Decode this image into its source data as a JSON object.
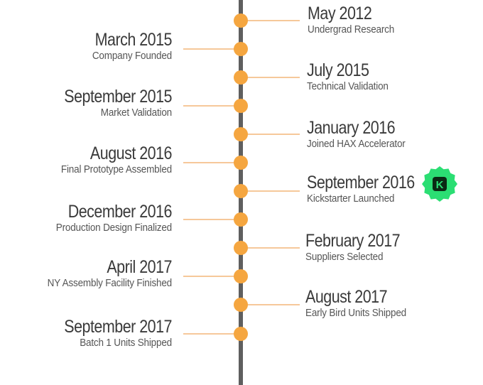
{
  "timeline": {
    "left_events": [
      {
        "date": "March 2015",
        "label": "Company Founded"
      },
      {
        "date": "September 2015",
        "label": "Market Validation"
      },
      {
        "date": "August 2016",
        "label": "Final Prototype Assembled"
      },
      {
        "date": "December 2016",
        "label": "Production Design Finalized"
      },
      {
        "date": "April 2017",
        "label": "NY Assembly Facility Finished"
      },
      {
        "date": "September 2017",
        "label": "Batch 1 Units Shipped"
      }
    ],
    "right_events": [
      {
        "date": "May 2012",
        "label": "Undergrad Research"
      },
      {
        "date": "July 2015",
        "label": "Technical Validation"
      },
      {
        "date": "January 2016",
        "label": "Joined HAX Accelerator"
      },
      {
        "date": "September 2016",
        "label": "Kickstarter Launched"
      },
      {
        "date": "February 2017",
        "label": "Suppliers Selected"
      },
      {
        "date": "August 2017",
        "label": "Early Bird Units Shipped"
      }
    ],
    "badge": {
      "letter": "K",
      "icon": "kickstarter-logo-icon"
    },
    "colors": {
      "spine": "#5f5f5f",
      "dot": "#f5a640",
      "connector": "#f6c89a",
      "badge": "#2bde73"
    }
  }
}
